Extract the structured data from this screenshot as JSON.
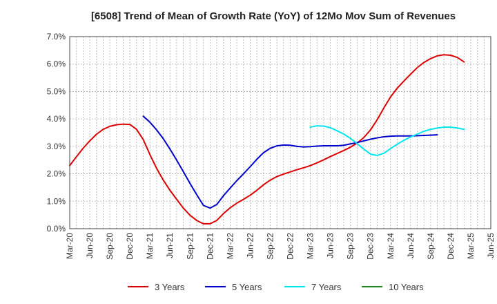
{
  "chart_data": {
    "type": "line",
    "title": "[6508]  Trend of Mean of Growth Rate (YoY) of 12Mo Mov Sum of Revenues",
    "xlabel": "",
    "ylabel": "",
    "ylim": [
      0,
      7
    ],
    "y_ticks": [
      "0.0%",
      "1.0%",
      "2.0%",
      "3.0%",
      "4.0%",
      "5.0%",
      "6.0%",
      "7.0%"
    ],
    "x_ticks": [
      "Mar-20",
      "Jun-20",
      "Sep-20",
      "Dec-20",
      "Mar-21",
      "Jun-21",
      "Sep-21",
      "Dec-21",
      "Mar-22",
      "Jun-22",
      "Sep-22",
      "Dec-22",
      "Mar-23",
      "Jun-23",
      "Sep-23",
      "Dec-23",
      "Mar-24",
      "Jun-24",
      "Sep-24",
      "Dec-24",
      "Mar-25",
      "Jun-25"
    ],
    "grid": true,
    "legend_position": "bottom",
    "series": [
      {
        "name": "3 Years",
        "color": "#dd0000",
        "start_index": 0,
        "values": [
          2.3,
          2.62,
          2.93,
          3.2,
          3.44,
          3.62,
          3.73,
          3.79,
          3.81,
          3.8,
          3.62,
          3.25,
          2.7,
          2.2,
          1.77,
          1.4,
          1.07,
          0.75,
          0.49,
          0.3,
          0.18,
          0.18,
          0.3,
          0.55,
          0.76,
          0.93,
          1.07,
          1.22,
          1.4,
          1.6,
          1.77,
          1.9,
          1.99,
          2.07,
          2.15,
          2.22,
          2.3,
          2.4,
          2.51,
          2.63,
          2.74,
          2.85,
          2.97,
          3.12,
          3.32,
          3.6,
          3.97,
          4.4,
          4.8,
          5.12,
          5.38,
          5.63,
          5.87,
          6.06,
          6.2,
          6.3,
          6.34,
          6.32,
          6.24,
          6.08
        ]
      },
      {
        "name": "5 Years",
        "color": "#0000cc",
        "start_index": 11,
        "values": [
          4.1,
          3.88,
          3.6,
          3.28,
          2.9,
          2.5,
          2.08,
          1.65,
          1.24,
          0.85,
          0.75,
          0.88,
          1.2,
          1.48,
          1.75,
          2.0,
          2.26,
          2.53,
          2.77,
          2.93,
          3.02,
          3.05,
          3.04,
          3.0,
          2.98,
          2.99,
          3.01,
          3.02,
          3.02,
          3.02,
          3.04,
          3.09,
          3.14,
          3.2,
          3.26,
          3.31,
          3.35,
          3.37,
          3.38,
          3.38,
          3.38,
          3.39,
          3.4,
          3.41,
          3.42
        ]
      },
      {
        "name": "7 Years",
        "color": "#00e5ee",
        "start_index": 36,
        "values": [
          3.7,
          3.75,
          3.74,
          3.68,
          3.57,
          3.45,
          3.29,
          3.1,
          2.9,
          2.72,
          2.67,
          2.75,
          2.92,
          3.08,
          3.22,
          3.34,
          3.45,
          3.55,
          3.62,
          3.67,
          3.7,
          3.7,
          3.67,
          3.62
        ]
      },
      {
        "name": "10 Years",
        "color": "#228B22",
        "start_index": 0,
        "values": []
      }
    ]
  }
}
